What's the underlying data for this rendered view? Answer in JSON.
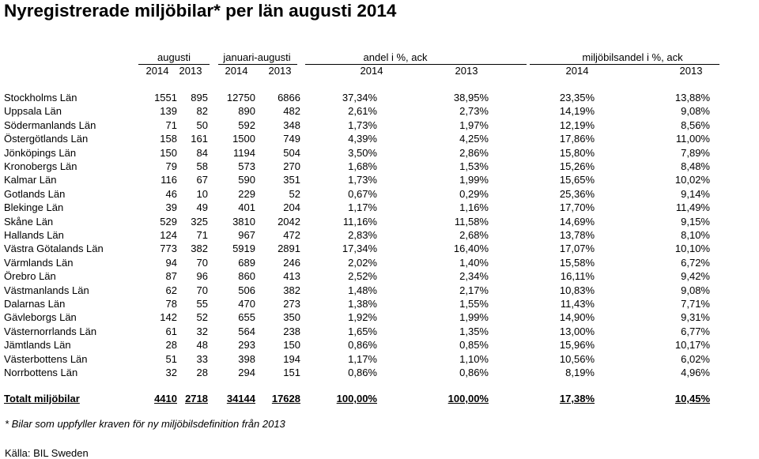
{
  "title": "Nyregistrerade miljöbilar* per län augusti 2014",
  "group_headers": {
    "augusti": "augusti",
    "jan_aug": "januari-augusti",
    "andel": "andel i %, ack",
    "miljo": "miljöbilsandel i %, ack"
  },
  "year_headers": [
    "2014",
    "2013",
    "2014",
    "2013",
    "2014",
    "2013",
    "2014",
    "2013"
  ],
  "rows": [
    [
      "Stockholms Län",
      "1551",
      "895",
      "12750",
      "6866",
      "37,34%",
      "38,95%",
      "23,35%",
      "13,88%"
    ],
    [
      "Uppsala Län",
      "139",
      "82",
      "890",
      "482",
      "2,61%",
      "2,73%",
      "14,19%",
      "9,08%"
    ],
    [
      "Södermanlands Län",
      "71",
      "50",
      "592",
      "348",
      "1,73%",
      "1,97%",
      "12,19%",
      "8,56%"
    ],
    [
      "Östergötlands Län",
      "158",
      "161",
      "1500",
      "749",
      "4,39%",
      "4,25%",
      "17,86%",
      "11,00%"
    ],
    [
      "Jönköpings Län",
      "150",
      "84",
      "1194",
      "504",
      "3,50%",
      "2,86%",
      "15,80%",
      "7,89%"
    ],
    [
      "Kronobergs Län",
      "79",
      "58",
      "573",
      "270",
      "1,68%",
      "1,53%",
      "15,26%",
      "8,48%"
    ],
    [
      "Kalmar Län",
      "116",
      "67",
      "590",
      "351",
      "1,73%",
      "1,99%",
      "15,65%",
      "10,02%"
    ],
    [
      "Gotlands Län",
      "46",
      "10",
      "229",
      "52",
      "0,67%",
      "0,29%",
      "25,36%",
      "9,14%"
    ],
    [
      "Blekinge Län",
      "39",
      "49",
      "401",
      "204",
      "1,17%",
      "1,16%",
      "17,70%",
      "11,49%"
    ],
    [
      "Skåne Län",
      "529",
      "325",
      "3810",
      "2042",
      "11,16%",
      "11,58%",
      "14,69%",
      "9,15%"
    ],
    [
      "Hallands Län",
      "124",
      "71",
      "967",
      "472",
      "2,83%",
      "2,68%",
      "13,78%",
      "8,10%"
    ],
    [
      "Västra Götalands Län",
      "773",
      "382",
      "5919",
      "2891",
      "17,34%",
      "16,40%",
      "17,07%",
      "10,10%"
    ],
    [
      "Värmlands Län",
      "94",
      "70",
      "689",
      "246",
      "2,02%",
      "1,40%",
      "15,58%",
      "6,72%"
    ],
    [
      "Örebro Län",
      "87",
      "96",
      "860",
      "413",
      "2,52%",
      "2,34%",
      "16,11%",
      "9,42%"
    ],
    [
      "Västmanlands Län",
      "62",
      "70",
      "506",
      "382",
      "1,48%",
      "2,17%",
      "10,83%",
      "9,08%"
    ],
    [
      "Dalarnas Län",
      "78",
      "55",
      "470",
      "273",
      "1,38%",
      "1,55%",
      "11,43%",
      "7,71%"
    ],
    [
      "Gävleborgs Län",
      "142",
      "52",
      "655",
      "350",
      "1,92%",
      "1,99%",
      "14,90%",
      "9,31%"
    ],
    [
      "Västernorrlands Län",
      "61",
      "32",
      "564",
      "238",
      "1,65%",
      "1,35%",
      "13,00%",
      "6,77%"
    ],
    [
      "Jämtlands Län",
      "28",
      "48",
      "293",
      "150",
      "0,86%",
      "0,85%",
      "15,96%",
      "10,17%"
    ],
    [
      "Västerbottens Län",
      "51",
      "33",
      "398",
      "194",
      "1,17%",
      "1,10%",
      "10,56%",
      "6,02%"
    ],
    [
      "Norrbottens Län",
      "32",
      "28",
      "294",
      "151",
      "0,86%",
      "0,86%",
      "8,19%",
      "4,96%"
    ]
  ],
  "total_row": [
    "Totalt miljöbilar",
    "4410",
    "2718",
    "34144",
    "17628",
    "100,00%",
    "100,00%",
    "17,38%",
    "10,45%"
  ],
  "footnote": "* Bilar som uppfyller kraven för ny miljöbilsdefinition från 2013",
  "source": "Källa: BIL Sweden"
}
